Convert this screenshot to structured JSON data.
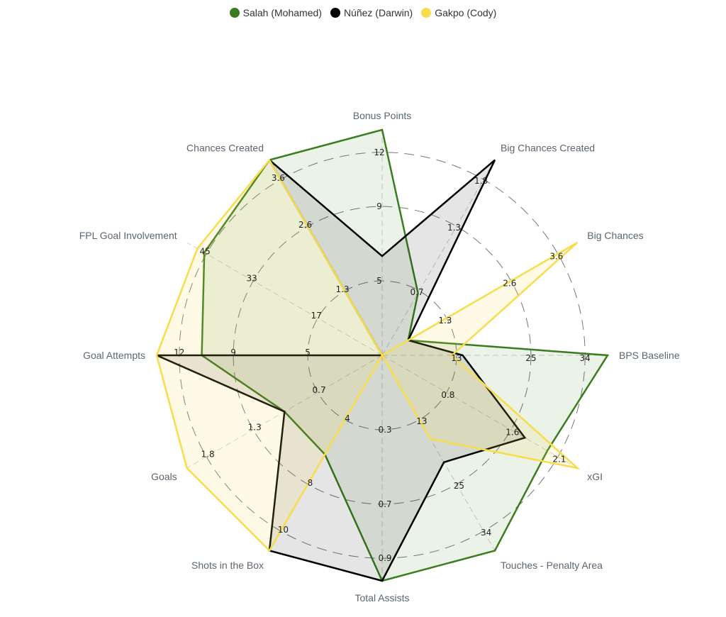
{
  "chart_data": {
    "type": "radar",
    "legend_position": "top-center",
    "axes": [
      {
        "label": "Bonus Points",
        "ticks": [
          "5",
          "9",
          "12"
        ],
        "max": 15
      },
      {
        "label": "Big Chances Created",
        "ticks": [
          "0.7",
          "1.3",
          "1.8"
        ],
        "max": 2.2
      },
      {
        "label": "Big Chances",
        "ticks": [
          "1.3",
          "2.6",
          "3.6"
        ],
        "max": 4.5
      },
      {
        "label": "BPS Baseline",
        "ticks": [
          "13",
          "25",
          "34"
        ],
        "max": 42
      },
      {
        "label": "xGI",
        "ticks": [
          "0.8",
          "1.6",
          "2.1"
        ],
        "max": 2.6
      },
      {
        "label": "Touches - Penalty Area",
        "ticks": [
          "13",
          "25",
          "34"
        ],
        "max": 42
      },
      {
        "label": "Total Assists",
        "ticks": [
          "0.3",
          "0.7",
          "0.9"
        ],
        "max": 1.1
      },
      {
        "label": "Shots in the Box",
        "ticks": [
          "4",
          "8",
          "10"
        ],
        "max": 13
      },
      {
        "label": "Goals",
        "ticks": [
          "0.7",
          "1.3",
          "1.8"
        ],
        "max": 2.2
      },
      {
        "label": "Goal Attempts",
        "ticks": [
          "5",
          "9",
          "12"
        ],
        "max": 15
      },
      {
        "label": "FPL Goal Involvement",
        "ticks": [
          "17",
          "33",
          "45"
        ],
        "max": 56
      },
      {
        "label": "Chances Created",
        "ticks": [
          "1.3",
          "2.6",
          "3.6"
        ],
        "max": 4.5
      }
    ],
    "series": [
      {
        "name": "Salah (Mohamed)",
        "color": "#3a7d20",
        "values": [
          15,
          0.7,
          0.6,
          42,
          2.2,
          42,
          1.1,
          6.6,
          1.1,
          12,
          51,
          4.5
        ]
      },
      {
        "name": "Núñez (Darwin)",
        "color": "#000000",
        "values": [
          6.6,
          2.2,
          0.6,
          15,
          1.9,
          23,
          1.1,
          13,
          1.1,
          15,
          0,
          4.5
        ]
      },
      {
        "name": "Gakpo (Cody)",
        "color": "#f7dc4b",
        "values": [
          0,
          0,
          4.5,
          13,
          2.6,
          18,
          0,
          13,
          2.2,
          15,
          53,
          4.5
        ]
      }
    ]
  }
}
